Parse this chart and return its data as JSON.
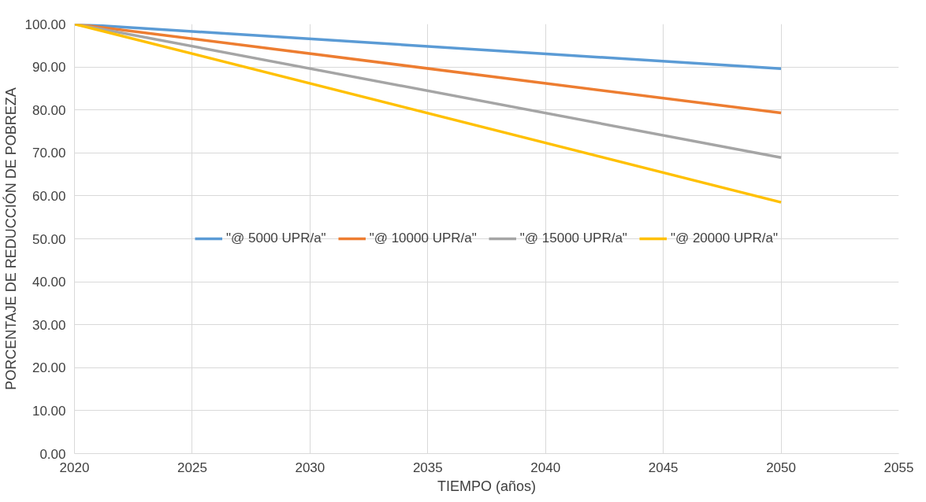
{
  "chart_data": {
    "type": "line",
    "xlabel": "TIEMPO (años)",
    "ylabel": "PORCENTAJE DE REDUCCIÓN DE POBREZA",
    "x": [
      2020,
      2050
    ],
    "series": [
      {
        "name": "\"@ 5000 UPR/a\"",
        "color": "#5b9bd5",
        "values": [
          100,
          89.6
        ]
      },
      {
        "name": "\"@ 10000 UPR/a\"",
        "color": "#ed7d31",
        "values": [
          100,
          79.3
        ]
      },
      {
        "name": "\"@ 15000 UPR/a\"",
        "color": "#a5a5a5",
        "values": [
          100,
          68.9
        ]
      },
      {
        "name": "\"@ 20000 UPR/a\"",
        "color": "#ffc000",
        "values": [
          100,
          58.5
        ]
      }
    ],
    "xlim": [
      2020,
      2055
    ],
    "xticks": [
      2020,
      2025,
      2030,
      2035,
      2040,
      2045,
      2050,
      2055
    ],
    "ylim": [
      0,
      100
    ],
    "yticks": [
      {
        "value": 0,
        "label": "0.00"
      },
      {
        "value": 10,
        "label": "10.00"
      },
      {
        "value": 20,
        "label": "20.00"
      },
      {
        "value": 30,
        "label": "30.00"
      },
      {
        "value": 40,
        "label": "40.00"
      },
      {
        "value": 50,
        "label": "50.00"
      },
      {
        "value": 60,
        "label": "60.00"
      },
      {
        "value": 70,
        "label": "70.00"
      },
      {
        "value": 80,
        "label": "80.00"
      },
      {
        "value": 90,
        "label": "90.00"
      },
      {
        "value": 100,
        "label": "100.00"
      }
    ],
    "grid": true,
    "legend": "center",
    "marker": "none",
    "line_style": "solid"
  }
}
